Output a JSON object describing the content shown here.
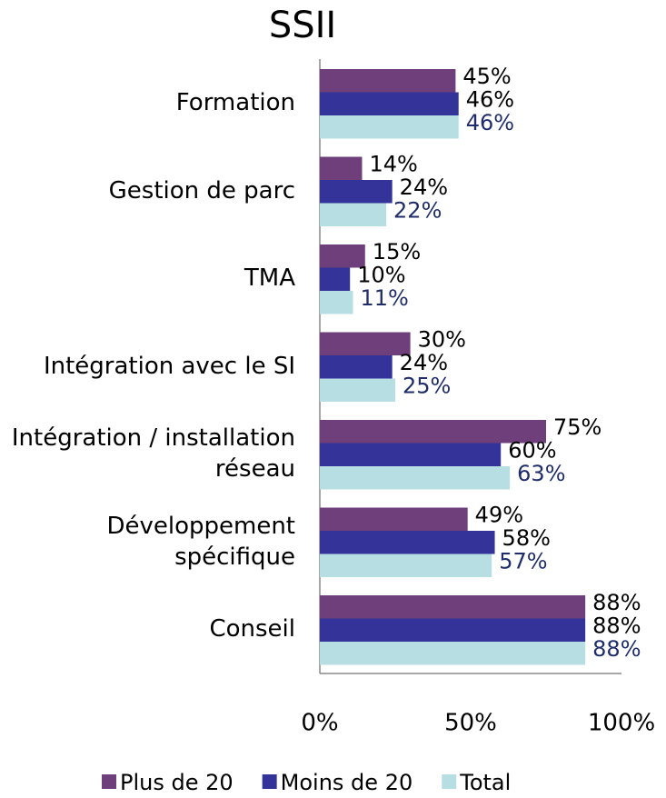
{
  "chart_data": {
    "type": "hbar",
    "title": "SSII",
    "categories": [
      "Formation",
      "Gestion de parc",
      "TMA",
      "Intégration avec le SI",
      "Intégration / installation réseau",
      "Développement spécifique",
      "Conseil"
    ],
    "series": [
      {
        "name": "Plus de 20",
        "color": "#6f3f7c",
        "label_color": "#000000",
        "values": [
          45,
          14,
          15,
          30,
          75,
          49,
          88
        ],
        "value_labels": [
          "45%",
          "14%",
          "15%",
          "30%",
          "75%",
          "49%",
          "88%"
        ]
      },
      {
        "name": "Moins de 20",
        "color": "#333399",
        "label_color": "#000000",
        "values": [
          46,
          24,
          10,
          24,
          60,
          58,
          88
        ],
        "value_labels": [
          "46%",
          "24%",
          "10%",
          "24%",
          "60%",
          "58%",
          "88%"
        ]
      },
      {
        "name": "Total",
        "color": "#b7dfe3",
        "label_color": "#1f2d6b",
        "values": [
          46,
          22,
          11,
          25,
          63,
          57,
          88
        ],
        "value_labels": [
          "46%",
          "22%",
          "11%",
          "25%",
          "63%",
          "57%",
          "88%"
        ]
      }
    ],
    "xlim": [
      0,
      100
    ],
    "xticks": [
      {
        "value": 0,
        "label": "0%"
      },
      {
        "value": 50,
        "label": "50%"
      },
      {
        "value": 100,
        "label": "100%"
      }
    ],
    "grid": false
  }
}
